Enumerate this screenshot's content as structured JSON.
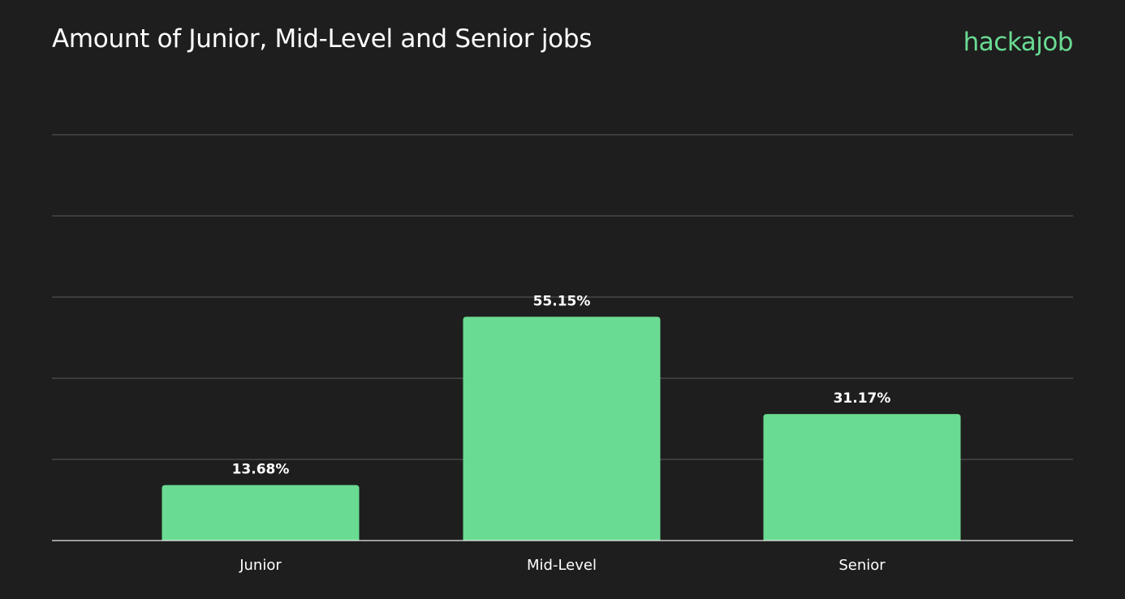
{
  "header": {
    "title": "Amount of Junior, Mid-Level and Senior jobs",
    "brand": "hackajob"
  },
  "colors": {
    "background": "#1e1e1e",
    "bar": "#6adb92",
    "brand": "#6adb92",
    "grid": "#5a5a5a",
    "axis": "#e8e8e8"
  },
  "chart_data": {
    "type": "bar",
    "title": "Amount of Junior, Mid-Level and Senior jobs",
    "categories": [
      "Junior",
      "Mid-Level",
      "Senior"
    ],
    "values": [
      13.68,
      55.15,
      31.17
    ],
    "value_labels": [
      "13.68%",
      "55.15%",
      "31.17%"
    ],
    "xlabel": "",
    "ylabel": "",
    "ylim": [
      0,
      100
    ],
    "grid": true
  }
}
